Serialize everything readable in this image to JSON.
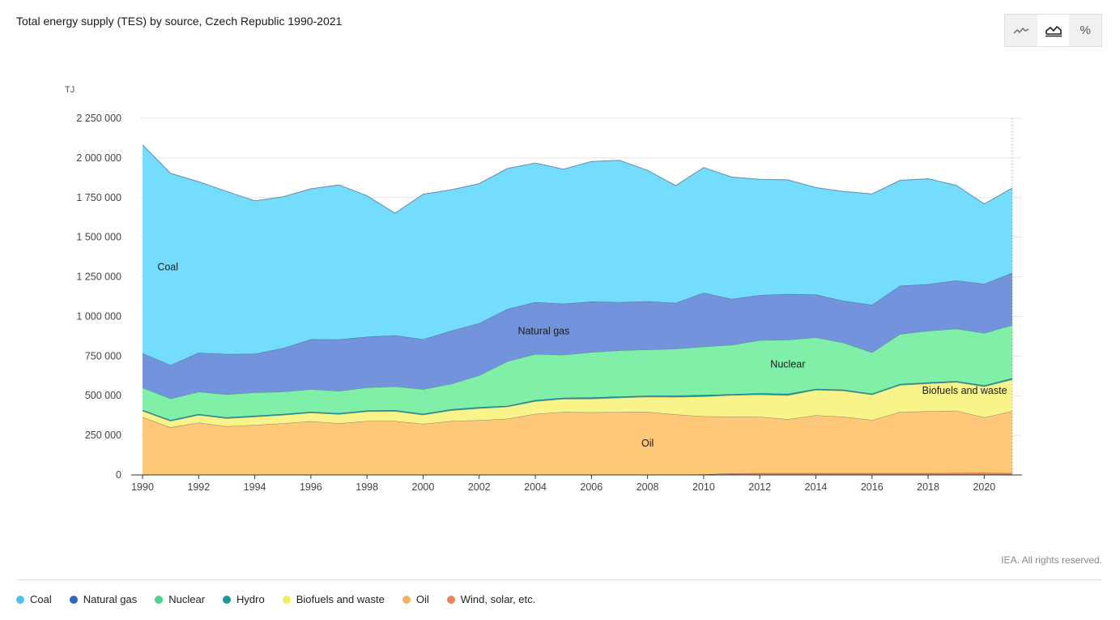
{
  "header": {
    "title": "Total energy supply (TES) by source, Czech Republic 1990-2021"
  },
  "toolbar": {
    "buttons": [
      {
        "name": "line-chart",
        "icon": "line-chart-icon",
        "active": false
      },
      {
        "name": "area-chart",
        "icon": "area-chart-icon",
        "active": true
      },
      {
        "name": "percent",
        "icon": "percent-icon",
        "label": "%",
        "active": false
      }
    ]
  },
  "footer": {
    "copyright": "IEA. All rights reserved."
  },
  "chart_data": {
    "type": "area",
    "stacked": true,
    "title": "Total energy supply (TES) by source, Czech Republic 1990-2021",
    "ylabel": "TJ",
    "xlabel": "",
    "ylim": [
      0,
      2250000
    ],
    "yticks": [
      0,
      250000,
      500000,
      750000,
      1000000,
      1250000,
      1500000,
      1750000,
      2000000,
      2250000
    ],
    "ytick_labels": [
      "0",
      "250 000",
      "500 000",
      "750 000",
      "1 000 000",
      "1 250 000",
      "1 500 000",
      "1 750 000",
      "2 000 000",
      "2 250 000"
    ],
    "xticks": [
      1990,
      1992,
      1994,
      1996,
      1998,
      2000,
      2002,
      2004,
      2006,
      2008,
      2010,
      2012,
      2014,
      2016,
      2018,
      2020
    ],
    "xtick_labels": [
      "1990",
      "1992",
      "1994",
      "1996",
      "1998",
      "2000",
      "2002",
      "2004",
      "2006",
      "2008",
      "2010",
      "2012",
      "2014",
      "2016",
      "2018",
      "2020"
    ],
    "x": [
      1990,
      1991,
      1992,
      1993,
      1994,
      1995,
      1996,
      1997,
      1998,
      1999,
      2000,
      2001,
      2002,
      2003,
      2004,
      2005,
      2006,
      2007,
      2008,
      2009,
      2010,
      2011,
      2012,
      2013,
      2014,
      2015,
      2016,
      2017,
      2018,
      2019,
      2020,
      2021
    ],
    "grid": true,
    "legend_position": "bottom",
    "series": [
      {
        "name": "Wind, solar, etc.",
        "color": "#e8845a",
        "area_label": "",
        "values": [
          0,
          0,
          0,
          0,
          0,
          0,
          0,
          0,
          0,
          0,
          0,
          0,
          0,
          0,
          0,
          0,
          0,
          0,
          0,
          1500,
          3500,
          10000,
          12000,
          12000,
          11500,
          11500,
          11000,
          12000,
          12000,
          12500,
          13000,
          12000
        ]
      },
      {
        "name": "Oil",
        "color": "#ffc878",
        "area_label": "Oil",
        "values": [
          364000,
          300000,
          330000,
          307000,
          315000,
          325000,
          339000,
          325000,
          340000,
          340000,
          322000,
          340000,
          345000,
          355000,
          385000,
          397000,
          395000,
          397000,
          398000,
          380000,
          366000,
          358000,
          355000,
          340000,
          365000,
          355000,
          335000,
          385000,
          390000,
          393000,
          350000,
          390000
        ]
      },
      {
        "name": "Biofuels and waste",
        "color": "#f8f48a",
        "area_label": "Biofuels and waste",
        "values": [
          40000,
          40000,
          48000,
          50000,
          52000,
          53000,
          53000,
          58000,
          60000,
          62000,
          57000,
          67000,
          75000,
          75000,
          80000,
          82000,
          85000,
          90000,
          95000,
          110000,
          125000,
          135000,
          140000,
          150000,
          160000,
          165000,
          160000,
          170000,
          175000,
          180000,
          195000,
          200000
        ]
      },
      {
        "name": "Hydro",
        "color": "#1a9a9a",
        "area_label": "",
        "values": [
          6500,
          6000,
          6500,
          6500,
          6700,
          6700,
          6800,
          6800,
          7000,
          7000,
          7200,
          7500,
          8000,
          6400,
          7400,
          8500,
          9500,
          8200,
          7500,
          9000,
          10000,
          7000,
          7700,
          10000,
          7000,
          7000,
          7200,
          7000,
          7000,
          7000,
          7600,
          8500
        ]
      },
      {
        "name": "Nuclear",
        "color": "#80f0a8",
        "area_label": "Nuclear",
        "values": [
          140000,
          135000,
          140000,
          145000,
          147000,
          140000,
          142000,
          140000,
          145000,
          150000,
          155000,
          160000,
          200000,
          280000,
          290000,
          270000,
          285000,
          290000,
          290000,
          295000,
          305000,
          310000,
          335000,
          340000,
          325000,
          295000,
          260000,
          315000,
          325000,
          330000,
          330000,
          335000
        ]
      },
      {
        "name": "Natural gas",
        "color": "#7394dc",
        "area_label": "Natural gas",
        "values": [
          218000,
          212000,
          246000,
          255000,
          244000,
          275000,
          315000,
          325000,
          320000,
          322000,
          315000,
          335000,
          330000,
          330000,
          328000,
          323000,
          320000,
          305000,
          305000,
          290000,
          340000,
          290000,
          285000,
          290000,
          270000,
          265000,
          300000,
          305000,
          295000,
          305000,
          310000,
          330000
        ]
      },
      {
        "name": "Coal",
        "color": "#74dcfc",
        "area_label": "Coal",
        "values": [
          1315000,
          1210000,
          1080000,
          1025000,
          965000,
          955000,
          950000,
          975000,
          890000,
          770000,
          915000,
          890000,
          880000,
          887000,
          878000,
          849000,
          883000,
          895000,
          826000,
          740000,
          790000,
          770000,
          730000,
          720000,
          675000,
          690000,
          700000,
          665000,
          665000,
          600000,
          505000,
          535000
        ]
      }
    ],
    "stack_order": [
      "Wind, solar, etc.",
      "Oil",
      "Biofuels and waste",
      "Hydro",
      "Nuclear",
      "Natural gas",
      "Coal"
    ]
  },
  "legend": [
    {
      "label": "Coal",
      "color": "#4cc4e8"
    },
    {
      "label": "Natural gas",
      "color": "#2f66c4"
    },
    {
      "label": "Nuclear",
      "color": "#4cd488"
    },
    {
      "label": "Hydro",
      "color": "#1a9a9a"
    },
    {
      "label": "Biofuels and waste",
      "color": "#f4ee5a"
    },
    {
      "label": "Oil",
      "color": "#f0b45a"
    },
    {
      "label": "Wind, solar, etc.",
      "color": "#e8845a"
    }
  ]
}
